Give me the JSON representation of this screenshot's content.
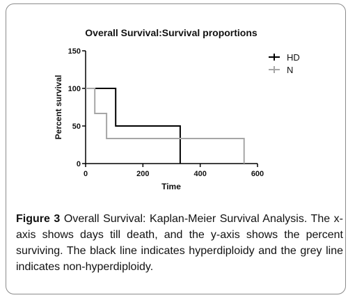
{
  "chart_data": {
    "type": "line",
    "step": true,
    "title": "Overall Survival:Survival proportions",
    "xlabel": "Time",
    "ylabel": "Percent survival",
    "xlim": [
      0,
      600
    ],
    "ylim": [
      0,
      150
    ],
    "xticks": [
      0,
      200,
      400,
      600
    ],
    "yticks": [
      0,
      50,
      100,
      150
    ],
    "grid": false,
    "legend_position": "top-right",
    "series": [
      {
        "name": "HD",
        "color": "#000000",
        "points": [
          [
            0,
            100
          ],
          [
            105,
            100
          ],
          [
            105,
            50
          ],
          [
            330,
            50
          ],
          [
            330,
            0
          ]
        ]
      },
      {
        "name": "N",
        "color": "#a6a6a6",
        "points": [
          [
            0,
            100
          ],
          [
            32,
            100
          ],
          [
            32,
            66.7
          ],
          [
            73,
            66.7
          ],
          [
            73,
            33.3
          ],
          [
            553,
            33.3
          ],
          [
            553,
            0
          ]
        ]
      }
    ]
  },
  "caption": {
    "label": "Figure 3",
    "text": "Overall Survival: Kaplan-Meier Survival Analysis. The x-axis shows days till death, and the y-axis shows the percent surviving. The black line indicates hyperdiploidy and the grey line indicates non-hyperdiploidy."
  }
}
